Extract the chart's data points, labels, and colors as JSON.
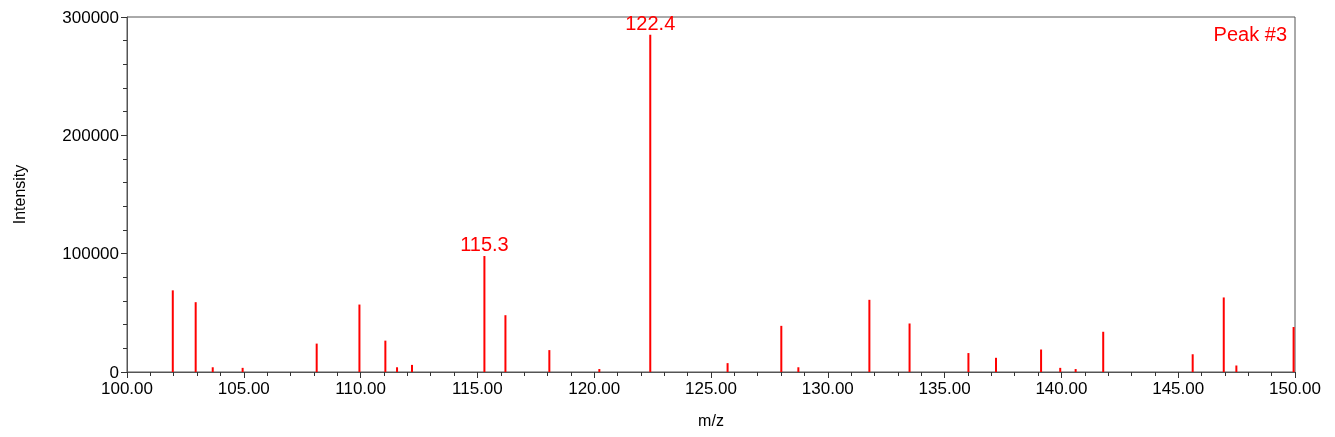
{
  "chart_data": {
    "type": "bar",
    "xlabel": "m/z",
    "ylabel": "Intensity",
    "x": [
      101.96,
      102.94,
      103.67,
      104.95,
      108.12,
      109.95,
      111.06,
      111.56,
      112.2,
      115.3,
      116.2,
      118.08,
      120.22,
      122.4,
      125.71,
      128.01,
      128.74,
      131.78,
      133.5,
      136.02,
      137.2,
      139.13,
      139.95,
      140.61,
      141.79,
      145.62,
      146.95,
      147.49,
      149.94
    ],
    "values": [
      69000,
      59000,
      4000,
      3500,
      24000,
      57000,
      26500,
      4000,
      6000,
      98000,
      48000,
      18500,
      2500,
      285000,
      7500,
      39000,
      4000,
      61000,
      41000,
      16000,
      12000,
      19000,
      3500,
      2500,
      34000,
      15000,
      63000,
      5500,
      38000
    ],
    "color": "#ff0000",
    "xlim": [
      100,
      150
    ],
    "xticks": [
      {
        "value": 100,
        "label": "100.00"
      },
      {
        "value": 105,
        "label": "105.00"
      },
      {
        "value": 110,
        "label": "110.00"
      },
      {
        "value": 115,
        "label": "115.00"
      },
      {
        "value": 120,
        "label": "120.00"
      },
      {
        "value": 125,
        "label": "125.00"
      },
      {
        "value": 130,
        "label": "130.00"
      },
      {
        "value": 135,
        "label": "135.00"
      },
      {
        "value": 140,
        "label": "140.00"
      },
      {
        "value": 145,
        "label": "145.00"
      },
      {
        "value": 150,
        "label": "150.00"
      }
    ],
    "ylim": [
      0,
      300000
    ],
    "yticks": [
      0,
      100000,
      200000,
      300000
    ],
    "annotations": [
      {
        "text": "115.3",
        "x": 115.3,
        "y": 98000
      },
      {
        "text": "122.4",
        "x": 122.4,
        "y": 285000
      },
      "Peak #3"
    ]
  }
}
